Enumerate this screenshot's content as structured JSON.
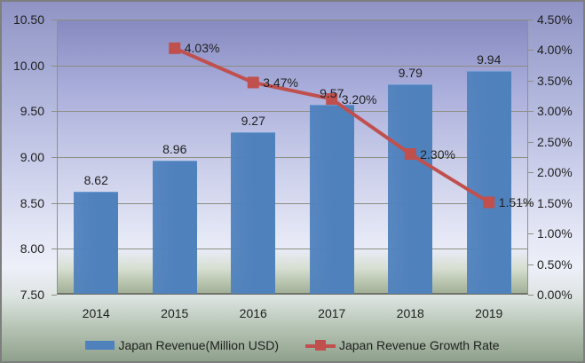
{
  "chart_data": {
    "type": "bar+line combo",
    "categories": [
      "2014",
      "2015",
      "2016",
      "2017",
      "2018",
      "2019"
    ],
    "series": [
      {
        "name": "Japan Revenue(Million USD)",
        "type": "bar",
        "axis": "left",
        "values": [
          8.62,
          8.96,
          9.27,
          9.57,
          9.79,
          9.94
        ],
        "labels": [
          "8.62",
          "8.96",
          "9.27",
          "9.57",
          "9.79",
          "9.94"
        ],
        "color": "#4f81bd"
      },
      {
        "name": "Japan Revenue Growth Rate",
        "type": "line",
        "axis": "right",
        "x_indices": [
          1,
          2,
          3,
          4,
          5
        ],
        "values": [
          4.03,
          3.47,
          3.2,
          2.3,
          1.51
        ],
        "labels": [
          "4.03%",
          "3.47%",
          "3.20%",
          "2.30%",
          "1.51%"
        ],
        "color": "#c0504d",
        "marker": "square"
      }
    ],
    "left_axis": {
      "min": 7.5,
      "max": 10.5,
      "ticks": [
        "10.50",
        "10.00",
        "9.50",
        "9.00",
        "8.50",
        "8.00",
        "7.50"
      ]
    },
    "right_axis": {
      "min": 0.0,
      "max": 4.5,
      "ticks": [
        "4.50%",
        "4.00%",
        "3.50%",
        "3.00%",
        "2.50%",
        "2.00%",
        "1.50%",
        "1.00%",
        "0.50%",
        "0.00%"
      ]
    },
    "title": "",
    "xlabel": "",
    "ylabel": "",
    "grid": true,
    "legend_position": "bottom"
  }
}
